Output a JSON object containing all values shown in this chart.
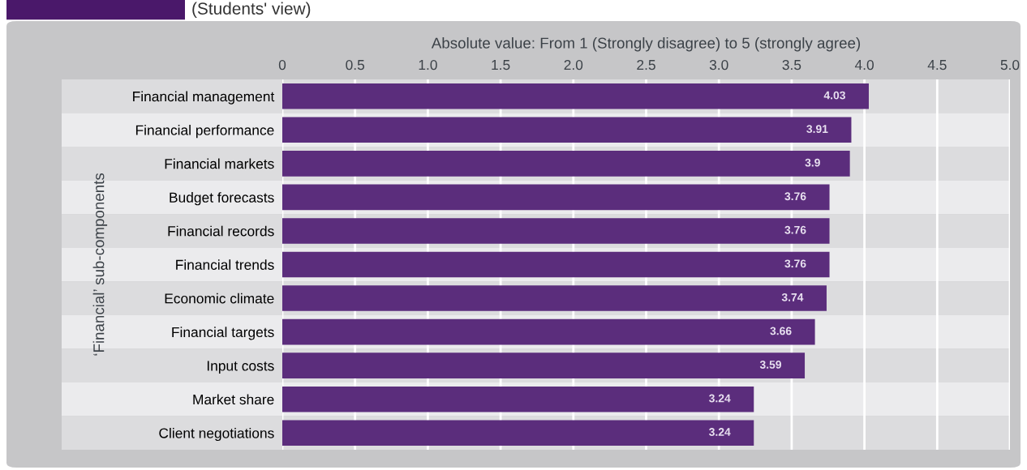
{
  "chart_data": {
    "type": "bar",
    "orientation": "horizontal",
    "title": "(Students' view)",
    "xlabel": "Absolute value: From 1 (Strongly disagree) to 5 (strongly agree)",
    "ylabel": "‘Financial’ sub-components",
    "categories": [
      "Financial management",
      "Financial performance",
      "Financial markets",
      "Budget forecasts",
      "Financial records",
      "Financial trends",
      "Economic climate",
      "Financial targets",
      "Input costs",
      "Market share",
      "Client negotiations"
    ],
    "values": [
      4.03,
      3.91,
      3.9,
      3.76,
      3.76,
      3.76,
      3.74,
      3.66,
      3.59,
      3.24,
      3.24
    ],
    "color": "#5b2d7c",
    "data_labels": true,
    "xlim": [
      0,
      5.0
    ],
    "xticks": [
      0,
      0.5,
      {
        "value": 1.0,
        "label": "1.0"
      },
      1.5,
      {
        "value": 2.0,
        "label": "2.0"
      },
      2.5,
      {
        "value": 3.0,
        "label": "3.0"
      },
      3.5,
      {
        "value": 4.0,
        "label": "4.0"
      },
      4.5,
      {
        "value": 5.0,
        "label": "5.0"
      }
    ],
    "grid": "x"
  }
}
